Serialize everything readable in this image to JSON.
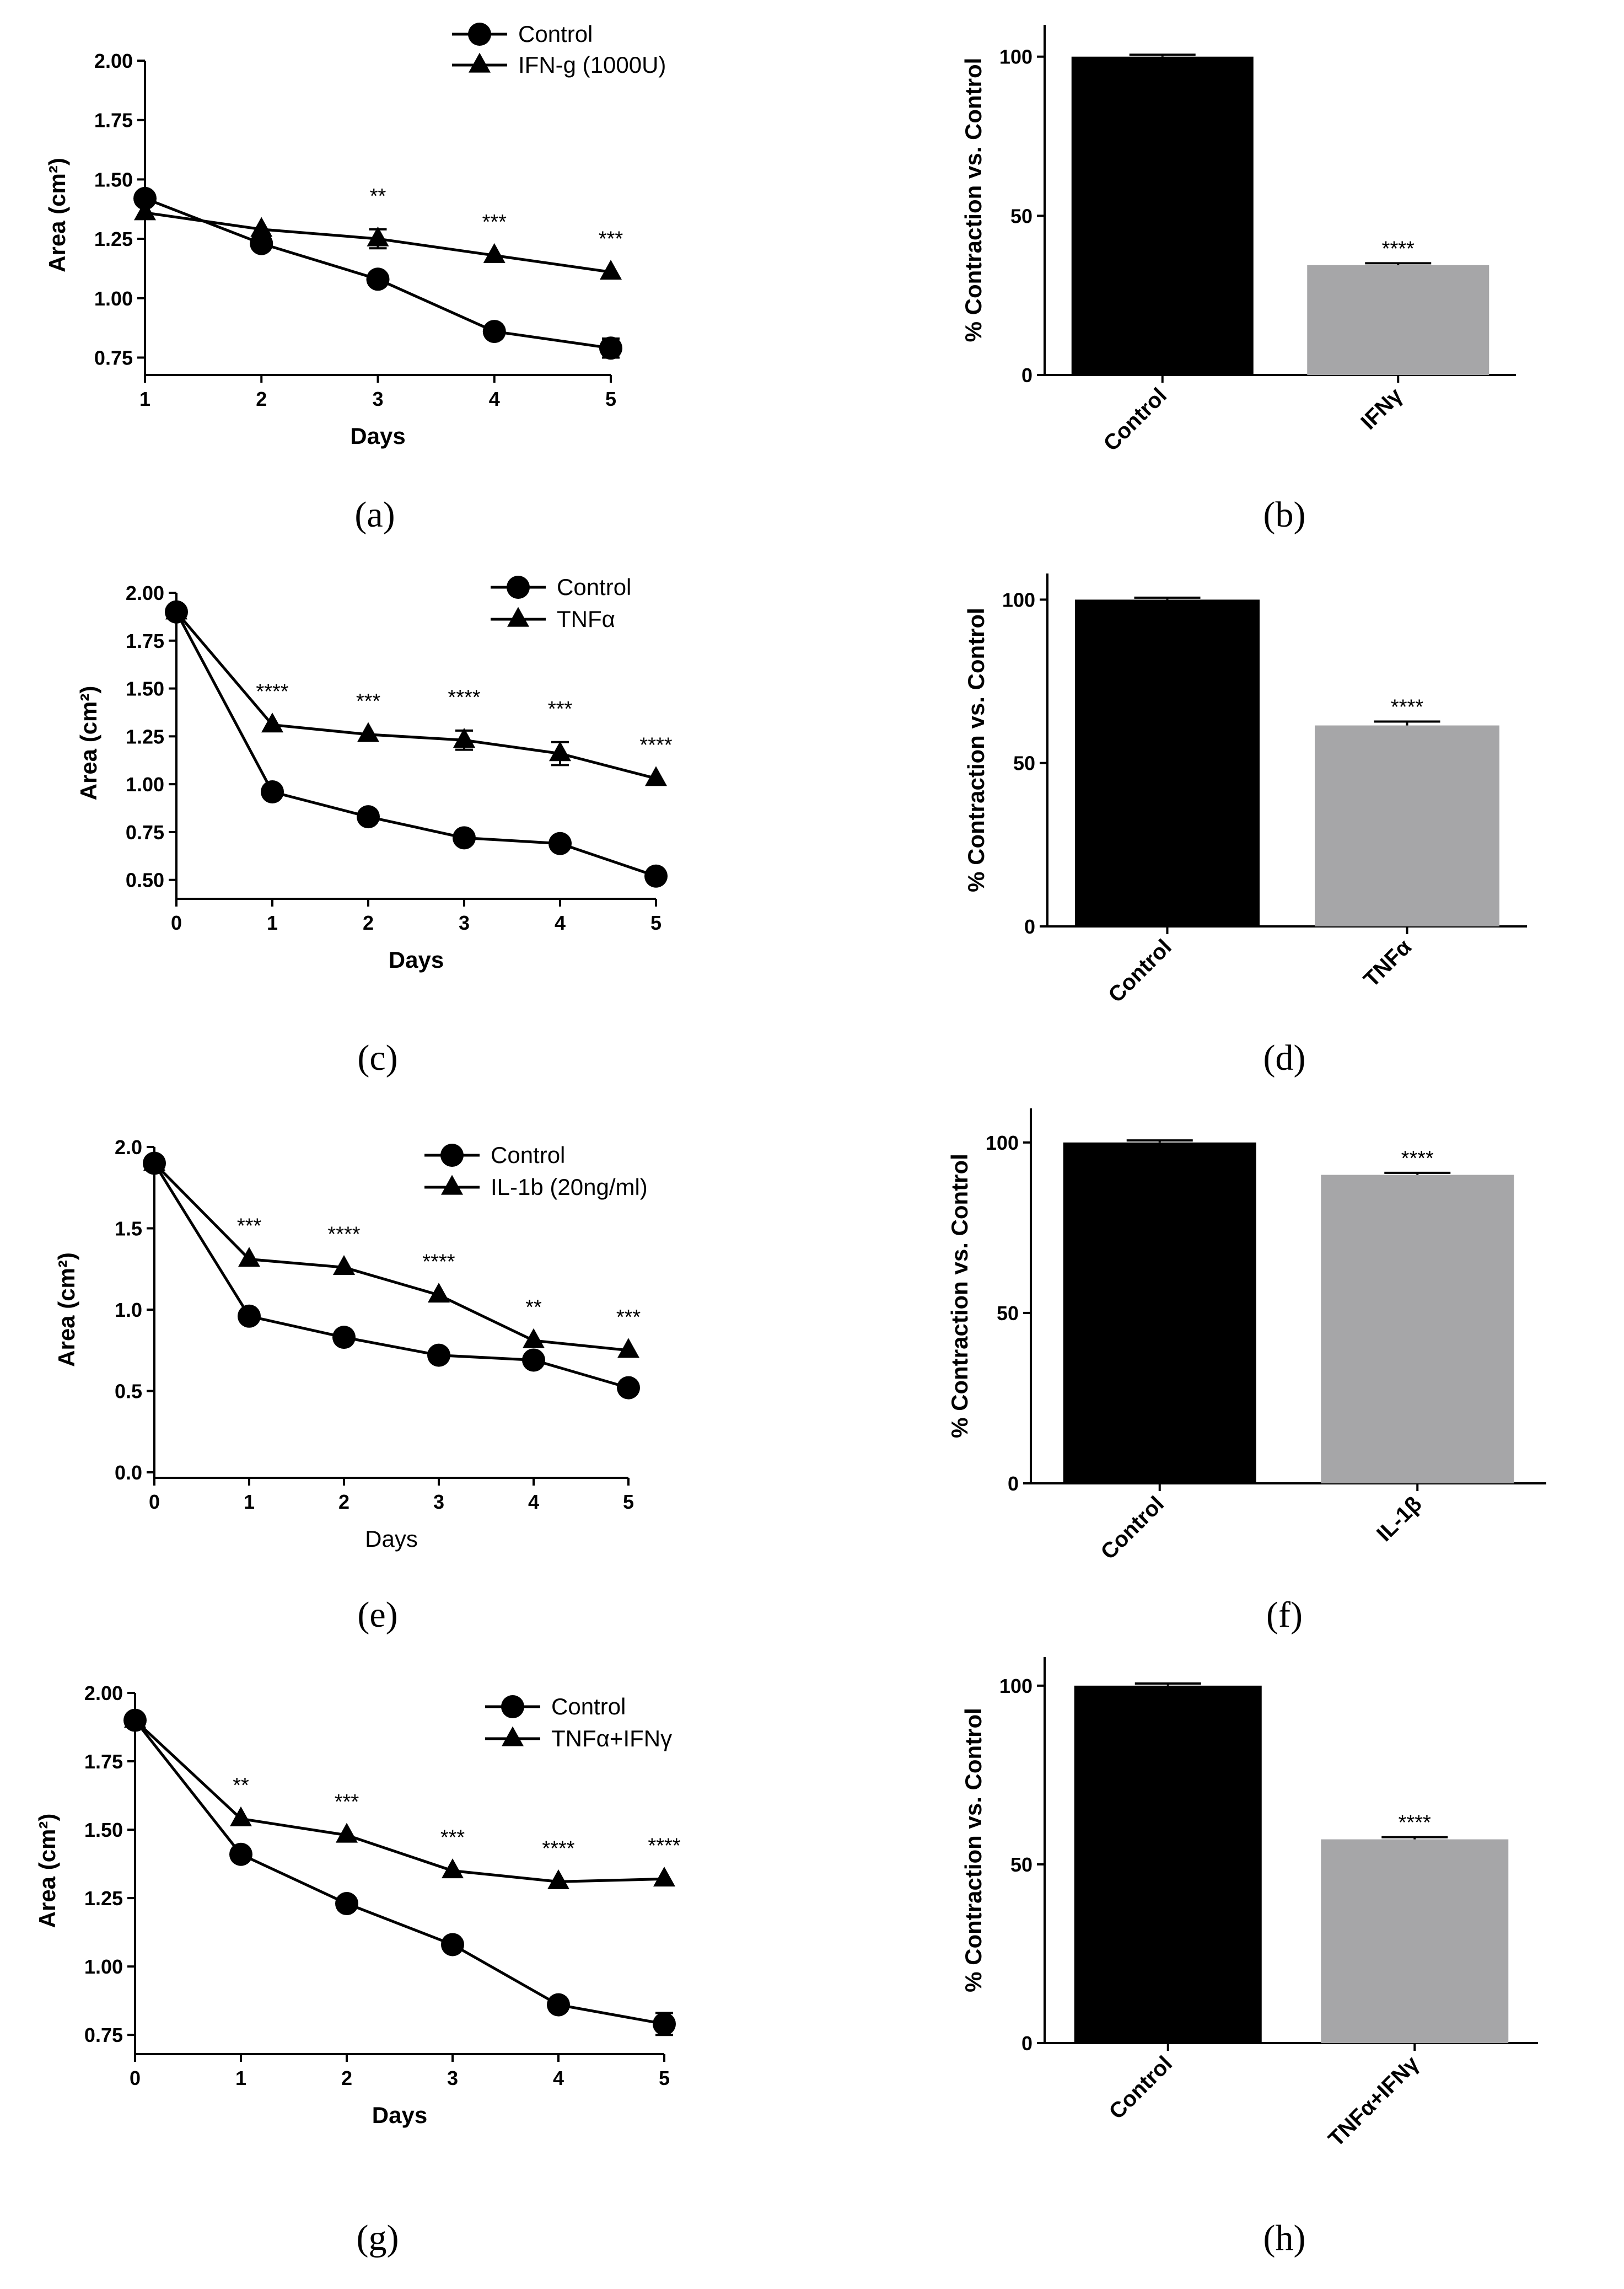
{
  "figure": {
    "panel_labels": [
      "(a)",
      "(b)",
      "(c)",
      "(d)",
      "(e)",
      "(f)",
      "(g)",
      "(h)"
    ]
  },
  "chart_data": [
    {
      "panel": "(a)",
      "type": "line",
      "xlabel": "Days",
      "ylabel": "Area (cm²)",
      "xlim": [
        1,
        5
      ],
      "ylim": [
        0.7,
        2.0
      ],
      "xticks": [
        1,
        2,
        3,
        4,
        5
      ],
      "yticks": [
        "0.75",
        "1.00",
        "1.25",
        "1.50",
        "1.75",
        "2.00"
      ],
      "yticks_num": [
        0.75,
        1.0,
        1.25,
        1.5,
        1.75,
        2.0
      ],
      "legend": [
        "Control",
        "IFN-g (1000U)"
      ],
      "series": [
        {
          "name": "Control",
          "marker": "circle",
          "x": [
            1,
            2,
            3,
            4,
            5
          ],
          "values": [
            1.42,
            1.23,
            1.08,
            0.86,
            0.79
          ],
          "err": [
            0,
            0,
            0,
            0,
            0.04
          ]
        },
        {
          "name": "IFN-g (1000U)",
          "marker": "triangle",
          "x": [
            1,
            2,
            3,
            4,
            5
          ],
          "values": [
            1.36,
            1.29,
            1.25,
            1.18,
            1.11
          ],
          "err": [
            0,
            0,
            0.04,
            0,
            0
          ]
        }
      ],
      "annotations": [
        {
          "x": 3,
          "text": "**"
        },
        {
          "x": 4,
          "text": "***"
        },
        {
          "x": 5,
          "text": "***"
        }
      ]
    },
    {
      "panel": "(b)",
      "type": "bar",
      "ylabel": "% Contraction vs. Control",
      "ylim": [
        0,
        110
      ],
      "yticks": [
        0,
        50,
        100
      ],
      "categories": [
        "Control",
        "IFNγ"
      ],
      "values": [
        100,
        34.5
      ],
      "err": [
        0.6,
        0.6
      ],
      "colors": [
        "#000000",
        "#a6a6a8"
      ],
      "annotations": [
        "",
        "****"
      ]
    },
    {
      "panel": "(c)",
      "type": "line",
      "xlabel": "Days",
      "ylabel": "Area (cm²)",
      "xlim": [
        0,
        5
      ],
      "ylim": [
        0.43,
        2.0
      ],
      "xticks": [
        0,
        1,
        2,
        3,
        4,
        5
      ],
      "yticks": [
        "0.50",
        "0.75",
        "1.00",
        "1.25",
        "1.50",
        "1.75",
        "2.00"
      ],
      "yticks_num": [
        0.5,
        0.75,
        1.0,
        1.25,
        1.5,
        1.75,
        2.0
      ],
      "legend": [
        "Control",
        "TNFα"
      ],
      "series": [
        {
          "name": "Control",
          "marker": "circle",
          "x": [
            0,
            1,
            2,
            3,
            4,
            5
          ],
          "values": [
            1.9,
            0.96,
            0.83,
            0.72,
            0.69,
            0.52
          ],
          "err": [
            0,
            0,
            0,
            0,
            0,
            0
          ]
        },
        {
          "name": "TNFα",
          "marker": "triangle",
          "x": [
            0,
            1,
            2,
            3,
            4,
            5
          ],
          "values": [
            1.9,
            1.31,
            1.26,
            1.23,
            1.16,
            1.03
          ],
          "err": [
            0,
            0,
            0,
            0.05,
            0.06,
            0
          ]
        }
      ],
      "annotations": [
        {
          "x": 1,
          "text": "****"
        },
        {
          "x": 2,
          "text": "***"
        },
        {
          "x": 3,
          "text": "****"
        },
        {
          "x": 4,
          "text": "***"
        },
        {
          "x": 5,
          "text": "****"
        }
      ]
    },
    {
      "panel": "(d)",
      "type": "bar",
      "ylabel": "% Contraction vs. Control",
      "ylim": [
        0,
        108
      ],
      "yticks": [
        0,
        50,
        100
      ],
      "categories": [
        "Control",
        "TNFα"
      ],
      "values": [
        100,
        61.5
      ],
      "err": [
        0.6,
        1.2
      ],
      "colors": [
        "#000000",
        "#a6a6a8"
      ],
      "annotations": [
        "",
        "****"
      ]
    },
    {
      "panel": "(e)",
      "type": "line",
      "xlabel": "Days",
      "xlabel_bold": false,
      "ylabel": "Area (cm²)",
      "xlim": [
        0,
        5
      ],
      "ylim": [
        0.0,
        2.0
      ],
      "xticks": [
        0,
        1,
        2,
        3,
        4,
        5
      ],
      "yticks": [
        "0.0",
        "0.5",
        "1.0",
        "1.5",
        "2.0"
      ],
      "yticks_num": [
        0.0,
        0.5,
        1.0,
        1.5,
        2.0
      ],
      "legend": [
        "Control",
        "IL-1b (20ng/ml)"
      ],
      "series": [
        {
          "name": "Control",
          "marker": "circle",
          "x": [
            0,
            1,
            2,
            3,
            4,
            5
          ],
          "values": [
            1.9,
            0.96,
            0.83,
            0.72,
            0.69,
            0.52
          ],
          "err": [
            0,
            0,
            0,
            0,
            0,
            0
          ]
        },
        {
          "name": "IL-1b (20ng/ml)",
          "marker": "triangle",
          "x": [
            0,
            1,
            2,
            3,
            4,
            5
          ],
          "values": [
            1.9,
            1.31,
            1.26,
            1.09,
            0.81,
            0.75
          ],
          "err": [
            0,
            0,
            0,
            0,
            0,
            0
          ]
        }
      ],
      "annotations": [
        {
          "x": 1,
          "text": "***"
        },
        {
          "x": 2,
          "text": "****"
        },
        {
          "x": 3,
          "text": "****"
        },
        {
          "x": 4,
          "text": "**"
        },
        {
          "x": 5,
          "text": "***"
        }
      ]
    },
    {
      "panel": "(f)",
      "type": "bar",
      "ylabel": "% Contraction vs. Control",
      "ylim": [
        0,
        110
      ],
      "yticks": [
        0,
        50,
        100
      ],
      "categories": [
        "Control",
        "IL-1β"
      ],
      "values": [
        100,
        90.5
      ],
      "err": [
        0.6,
        0.6
      ],
      "colors": [
        "#000000",
        "#a6a6a8"
      ],
      "annotations": [
        "",
        "****"
      ]
    },
    {
      "panel": "(g)",
      "type": "line",
      "xlabel": "Days",
      "ylabel": "Area (cm²)",
      "xlim": [
        0,
        5
      ],
      "ylim": [
        0.7,
        2.0
      ],
      "xticks": [
        0,
        1,
        2,
        3,
        4,
        5
      ],
      "yticks": [
        "0.75",
        "1.00",
        "1.25",
        "1.50",
        "1.75",
        "2.00"
      ],
      "yticks_num": [
        0.75,
        1.0,
        1.25,
        1.5,
        1.75,
        2.0
      ],
      "legend": [
        "Control",
        "TNFα+IFNγ"
      ],
      "series": [
        {
          "name": "Control",
          "marker": "circle",
          "x": [
            0,
            1,
            2,
            3,
            4,
            5
          ],
          "values": [
            1.9,
            1.41,
            1.23,
            1.08,
            0.86,
            0.79
          ],
          "err": [
            0,
            0,
            0,
            0,
            0,
            0.04
          ]
        },
        {
          "name": "TNFα+IFNγ",
          "marker": "triangle",
          "x": [
            0,
            1,
            2,
            3,
            4,
            5
          ],
          "values": [
            1.9,
            1.54,
            1.48,
            1.35,
            1.31,
            1.32
          ],
          "err": [
            0,
            0,
            0,
            0,
            0,
            0
          ]
        }
      ],
      "annotations": [
        {
          "x": 1,
          "text": "**"
        },
        {
          "x": 2,
          "text": "***"
        },
        {
          "x": 3,
          "text": "***"
        },
        {
          "x": 4,
          "text": "****"
        },
        {
          "x": 5,
          "text": "****"
        }
      ]
    },
    {
      "panel": "(h)",
      "type": "bar",
      "ylabel": "% Contraction vs. Control",
      "ylim": [
        0,
        108
      ],
      "yticks": [
        0,
        50,
        100
      ],
      "categories": [
        "Control",
        "TNFα+IFNγ"
      ],
      "values": [
        100,
        57
      ],
      "err": [
        0.6,
        0.6
      ],
      "colors": [
        "#000000",
        "#a6a6a8"
      ],
      "annotations": [
        "",
        "****"
      ]
    }
  ]
}
